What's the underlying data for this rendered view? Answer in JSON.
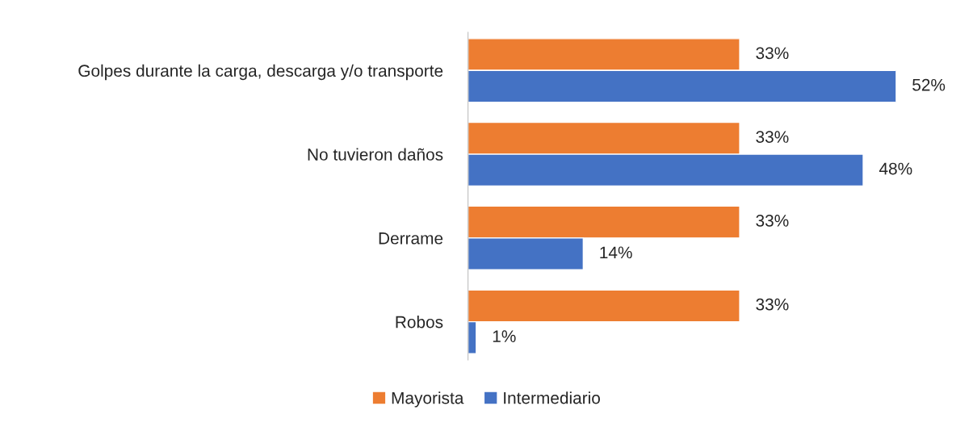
{
  "chart_data": {
    "type": "bar",
    "orientation": "horizontal",
    "categories": [
      "Golpes durante la carga, descarga y/o transporte",
      "No tuvieron daños",
      "Derrame",
      "Robos"
    ],
    "series": [
      {
        "name": "Mayorista",
        "color": "#ed7d31",
        "values": [
          33,
          33,
          33,
          33
        ],
        "value_labels": [
          "33%",
          "33%",
          "33%",
          "33%"
        ]
      },
      {
        "name": "Intermediario",
        "color": "#4472c4",
        "values": [
          52,
          48,
          14,
          1
        ],
        "value_labels": [
          "52%",
          "48%",
          "14%",
          "1%"
        ]
      }
    ],
    "legend": "bottom",
    "tick_labels": "y"
  }
}
